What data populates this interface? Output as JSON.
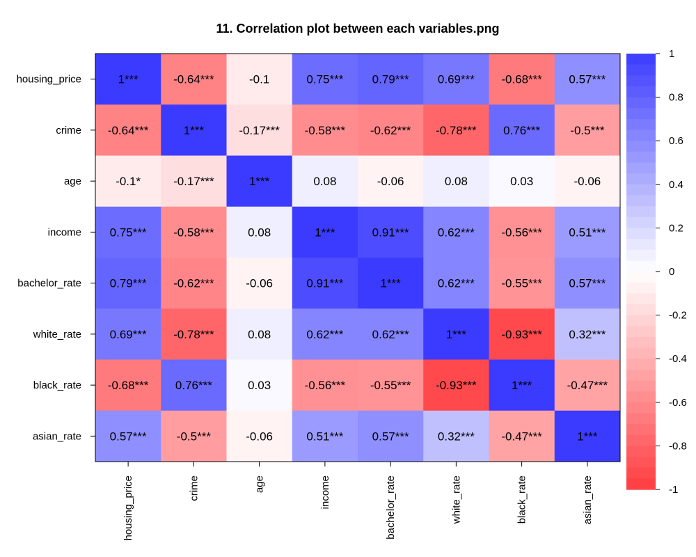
{
  "chart_data": {
    "type": "heatmap",
    "title": "11. Correlation plot between each variables.png",
    "rows": [
      "housing_price",
      "crime",
      "age",
      "income",
      "bachelor_rate",
      "white_rate",
      "black_rate",
      "asian_rate"
    ],
    "columns": [
      "housing_price",
      "crime",
      "age",
      "income",
      "bachelor_rate",
      "white_rate",
      "black_rate",
      "asian_rate"
    ],
    "values": [
      [
        1,
        -0.64,
        -0.1,
        0.75,
        0.79,
        0.69,
        -0.68,
        0.57
      ],
      [
        -0.64,
        1,
        -0.17,
        -0.58,
        -0.62,
        -0.78,
        0.76,
        -0.5
      ],
      [
        -0.1,
        -0.17,
        1,
        0.08,
        -0.06,
        0.08,
        0.03,
        -0.06
      ],
      [
        0.75,
        -0.58,
        0.08,
        1,
        0.91,
        0.62,
        -0.56,
        0.51
      ],
      [
        0.79,
        -0.62,
        -0.06,
        0.91,
        1,
        0.62,
        -0.55,
        0.57
      ],
      [
        0.69,
        -0.78,
        0.08,
        0.62,
        0.62,
        1,
        -0.93,
        0.32
      ],
      [
        -0.68,
        0.76,
        0.03,
        -0.56,
        -0.55,
        -0.93,
        1,
        -0.47
      ],
      [
        0.57,
        -0.5,
        -0.06,
        0.51,
        0.57,
        0.32,
        -0.47,
        1
      ]
    ],
    "labels": [
      [
        "1***",
        "-0.64***",
        "-0.1",
        "0.75***",
        "0.79***",
        "0.69***",
        "-0.68***",
        "0.57***"
      ],
      [
        "-0.64***",
        "1***",
        "-0.17***",
        "-0.58***",
        "-0.62***",
        "-0.78***",
        "0.76***",
        "-0.5***"
      ],
      [
        "-0.1*",
        "-0.17***",
        "1***",
        "0.08",
        "-0.06",
        "0.08",
        "0.03",
        "-0.06"
      ],
      [
        "0.75***",
        "-0.58***",
        "0.08",
        "1***",
        "0.91***",
        "0.62***",
        "-0.56***",
        "0.51***"
      ],
      [
        "0.79***",
        "-0.62***",
        "-0.06",
        "0.91***",
        "1***",
        "0.62***",
        "-0.55***",
        "0.57***"
      ],
      [
        "0.69***",
        "-0.78***",
        "0.08",
        "0.62***",
        "0.62***",
        "1***",
        "-0.93***",
        "0.32***"
      ],
      [
        "-0.68***",
        "0.76***",
        "0.03",
        "-0.56***",
        "-0.55***",
        "-0.93***",
        "1***",
        "-0.47***"
      ],
      [
        "0.57***",
        "-0.5***",
        "-0.06",
        "0.51***",
        "0.57***",
        "0.32***",
        "-0.47***",
        "1***"
      ]
    ],
    "color_scale": {
      "min": -1,
      "max": 1,
      "ticks": [
        "1",
        "0.8",
        "0.6",
        "0.4",
        "0.2",
        "0",
        "-0.2",
        "-0.4",
        "-0.6",
        "-0.8",
        "-1"
      ],
      "tick_values": [
        1,
        0.8,
        0.6,
        0.4,
        0.2,
        0,
        -0.2,
        -0.4,
        -0.6,
        -0.8,
        -1
      ],
      "positive_color": "#3b3bff",
      "negative_color": "#ff3b40",
      "neutral_color": "#ffffff",
      "legend_placement": "right"
    },
    "xlabel": "",
    "ylabel": ""
  }
}
